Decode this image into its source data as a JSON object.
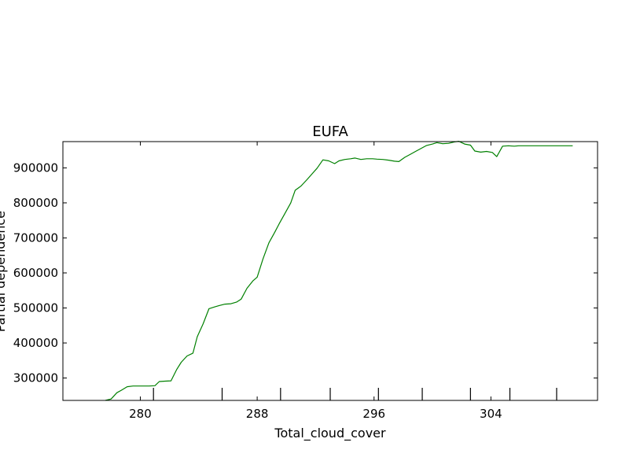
{
  "chart_data": {
    "type": "line",
    "title": "EUFA",
    "xlabel": "Total_cloud_cover",
    "ylabel": "Partial dependence",
    "xlim": [
      274.7,
      311.3
    ],
    "ylim": [
      236000,
      975000
    ],
    "xticks": [
      280,
      288,
      296,
      304
    ],
    "yticks": [
      300000,
      400000,
      500000,
      600000,
      700000,
      800000,
      900000
    ],
    "rug": [
      280.9,
      285.6,
      289.6,
      293.0,
      296.3,
      299.3,
      302.6,
      305.3,
      308.5
    ],
    "grid": false,
    "line_color": "#008000",
    "series": [
      {
        "x": [
          277.6,
          278.0,
          278.4,
          278.7,
          279.1,
          279.5,
          279.8,
          280.2,
          280.6,
          281.0,
          281.3,
          281.7,
          282.1,
          282.5,
          282.8,
          283.2,
          283.6,
          283.9,
          284.3,
          284.7,
          285.1,
          285.4,
          285.8,
          286.2,
          286.6,
          286.9,
          287.3,
          287.7,
          288.0,
          288.4,
          288.8,
          289.2,
          289.5,
          289.9,
          290.3,
          290.6,
          291.0,
          291.4,
          291.8,
          292.1,
          292.5,
          292.9,
          293.3,
          293.6,
          294.0,
          294.4,
          294.7,
          295.1,
          295.5,
          295.9,
          296.2,
          296.6,
          297.0,
          297.4,
          297.7,
          298.1,
          298.5,
          298.8,
          299.2,
          299.6,
          300.0,
          300.3,
          300.7,
          301.1,
          301.5,
          301.8,
          302.2,
          302.6,
          302.9,
          303.3,
          303.7,
          304.1,
          304.4,
          304.8,
          305.2,
          305.6,
          305.9,
          306.3,
          306.7,
          307.0,
          307.4,
          307.8,
          308.2,
          308.5,
          308.9,
          309.3,
          309.6
        ],
        "y": [
          236000,
          240000,
          258000,
          265000,
          275000,
          277000,
          277000,
          277000,
          277000,
          278000,
          290000,
          291000,
          292000,
          325000,
          345000,
          363000,
          371000,
          418000,
          455000,
          498000,
          503000,
          507000,
          511000,
          512000,
          517000,
          525000,
          556000,
          577000,
          588000,
          640000,
          686000,
          716000,
          740000,
          770000,
          800000,
          836000,
          848000,
          866000,
          885000,
          899000,
          923000,
          920000,
          912000,
          920000,
          924000,
          926000,
          928000,
          924000,
          926000,
          926000,
          925000,
          924000,
          922000,
          919000,
          918000,
          930000,
          939000,
          946000,
          955000,
          964000,
          968000,
          972000,
          969000,
          970000,
          974000,
          976000,
          968000,
          965000,
          948000,
          945000,
          947000,
          944000,
          932000,
          962000,
          963000,
          962000,
          963000,
          963000,
          963000,
          963000,
          963000,
          963000,
          963000,
          963000,
          963000,
          963000,
          963000
        ]
      }
    ]
  }
}
